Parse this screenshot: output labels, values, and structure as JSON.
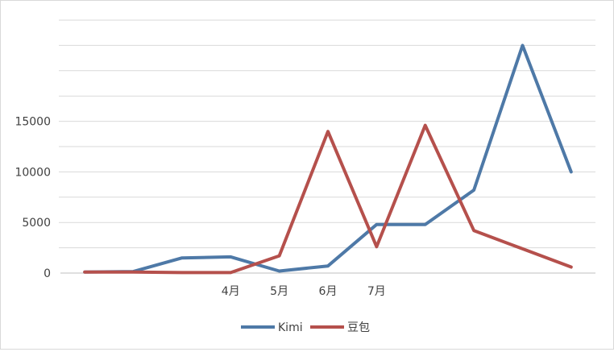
{
  "chart_data": {
    "type": "line",
    "categories": [
      "",
      "",
      "",
      "4月",
      "5月",
      "6月",
      "7月",
      "",
      "",
      "",
      ""
    ],
    "series": [
      {
        "name": "Kimi",
        "color": "#4e79a7",
        "values": [
          100,
          150,
          1500,
          1600,
          200,
          700,
          4800,
          4800,
          8200,
          22500,
          10000
        ]
      },
      {
        "name": "豆包",
        "color": "#b5504c",
        "values": [
          100,
          100,
          50,
          50,
          1700,
          14000,
          2600,
          14600,
          4200,
          2400,
          600
        ]
      }
    ],
    "yticks": [
      0,
      5000,
      10000,
      15000
    ],
    "ylim": [
      0,
      25000
    ],
    "grid": true,
    "legend_position": "bottom"
  }
}
